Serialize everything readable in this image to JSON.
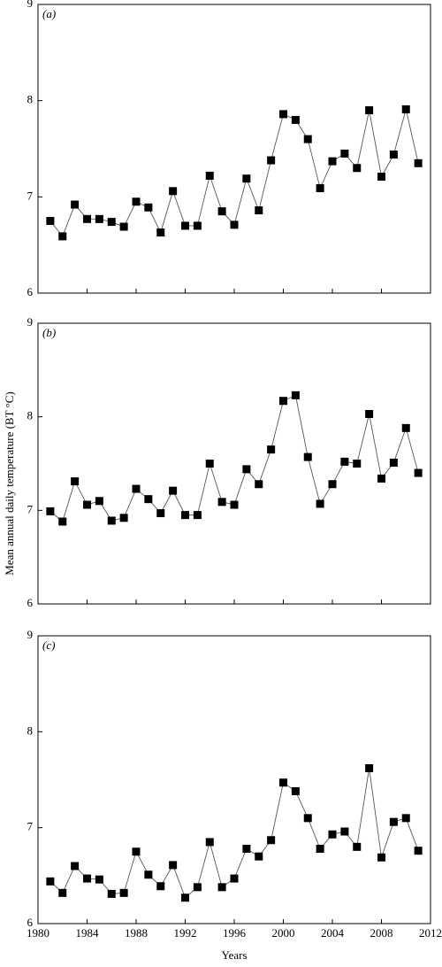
{
  "chart_data": [
    {
      "type": "line",
      "annotation": "(a)",
      "color": "#000000",
      "x": [
        1981,
        1982,
        1983,
        1984,
        1985,
        1986,
        1987,
        1988,
        1989,
        1990,
        1991,
        1992,
        1993,
        1994,
        1995,
        1996,
        1997,
        1998,
        1999,
        2000,
        2001,
        2002,
        2003,
        2004,
        2005,
        2006,
        2007,
        2008,
        2009,
        2010,
        2011
      ],
      "values": [
        6.75,
        6.59,
        6.92,
        6.77,
        6.77,
        6.74,
        6.69,
        6.95,
        6.89,
        6.63,
        7.06,
        6.7,
        6.7,
        7.22,
        6.85,
        6.71,
        7.19,
        6.86,
        7.38,
        7.86,
        7.8,
        7.6,
        7.09,
        7.37,
        7.45,
        7.3,
        7.9,
        7.21,
        7.44,
        7.91,
        7.35
      ],
      "xlim": [
        1980,
        2012
      ],
      "xticks": [
        1980,
        1984,
        1988,
        1992,
        1996,
        2000,
        2004,
        2008,
        2012
      ],
      "ylim": [
        6,
        9
      ],
      "yticks": [
        6,
        7,
        8,
        9
      ]
    },
    {
      "type": "line",
      "annotation": "(b)",
      "color": "#000000",
      "y_label": "Mean annual daily temperature (BT °C)",
      "x": [
        1981,
        1982,
        1983,
        1984,
        1985,
        1986,
        1987,
        1988,
        1989,
        1990,
        1991,
        1992,
        1993,
        1994,
        1995,
        1996,
        1997,
        1998,
        1999,
        2000,
        2001,
        2002,
        2003,
        2004,
        2005,
        2006,
        2007,
        2008,
        2009,
        2010,
        2011
      ],
      "values": [
        6.99,
        6.88,
        7.31,
        7.06,
        7.1,
        6.89,
        6.92,
        7.23,
        7.12,
        6.97,
        7.21,
        6.95,
        6.95,
        7.5,
        7.09,
        7.06,
        7.44,
        7.28,
        7.65,
        8.17,
        8.23,
        7.57,
        7.07,
        7.28,
        7.52,
        7.5,
        8.03,
        7.34,
        7.51,
        7.88,
        7.4
      ],
      "xlim": [
        1980,
        2012
      ],
      "xticks": [
        1980,
        1984,
        1988,
        1992,
        1996,
        2000,
        2004,
        2008,
        2012
      ],
      "ylim": [
        6,
        9
      ],
      "yticks": [
        6,
        7,
        8,
        9
      ]
    },
    {
      "type": "line",
      "annotation": "(c)",
      "color": "#000000",
      "x_label": "Years",
      "x": [
        1981,
        1982,
        1983,
        1984,
        1985,
        1986,
        1987,
        1988,
        1989,
        1990,
        1991,
        1992,
        1993,
        1994,
        1995,
        1996,
        1997,
        1998,
        1999,
        2000,
        2001,
        2002,
        2003,
        2004,
        2005,
        2006,
        2007,
        2008,
        2009,
        2010,
        2011
      ],
      "values": [
        6.44,
        6.32,
        6.6,
        6.47,
        6.46,
        6.31,
        6.32,
        6.75,
        6.51,
        6.39,
        6.61,
        6.27,
        6.38,
        6.85,
        6.38,
        6.47,
        6.78,
        6.7,
        6.87,
        7.47,
        7.38,
        7.1,
        6.78,
        6.93,
        6.96,
        6.8,
        7.62,
        6.69,
        7.06,
        7.1,
        6.76
      ],
      "xlim": [
        1980,
        2012
      ],
      "xticks": [
        1980,
        1984,
        1988,
        1992,
        1996,
        2000,
        2004,
        2008,
        2012
      ],
      "ylim": [
        6,
        9
      ],
      "yticks": [
        6,
        7,
        8,
        9
      ]
    }
  ]
}
